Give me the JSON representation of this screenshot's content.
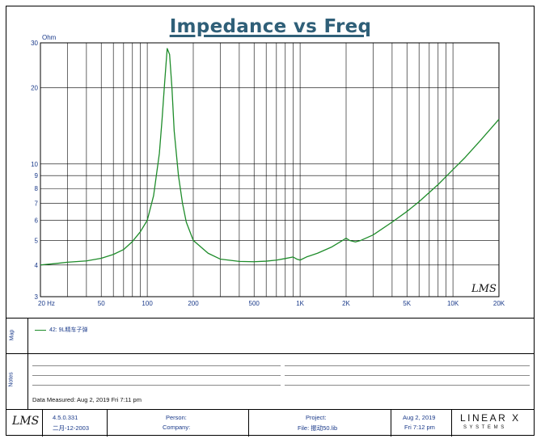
{
  "title": "Impedance vs Freq",
  "chart_data": {
    "type": "line",
    "title": "Impedance vs Freq",
    "ylabel": "Ohm",
    "xlabel": "",
    "x_scale": "log",
    "y_scale": "log",
    "xlim": [
      20,
      20000
    ],
    "ylim": [
      3,
      30
    ],
    "grid": true,
    "x_tick_labels": [
      {
        "value": 20,
        "label": "20 Hz"
      },
      {
        "value": 50,
        "label": "50"
      },
      {
        "value": 100,
        "label": "100"
      },
      {
        "value": 200,
        "label": "200"
      },
      {
        "value": 500,
        "label": "500"
      },
      {
        "value": 1000,
        "label": "1K"
      },
      {
        "value": 2000,
        "label": "2K"
      },
      {
        "value": 5000,
        "label": "5K"
      },
      {
        "value": 10000,
        "label": "10K"
      },
      {
        "value": 20000,
        "label": "20K"
      }
    ],
    "y_tick_labels": [
      {
        "value": 3,
        "label": "3"
      },
      {
        "value": 4,
        "label": "4"
      },
      {
        "value": 5,
        "label": "5"
      },
      {
        "value": 6,
        "label": "6"
      },
      {
        "value": 7,
        "label": "7"
      },
      {
        "value": 8,
        "label": "8"
      },
      {
        "value": 9,
        "label": "9"
      },
      {
        "value": 10,
        "label": "10"
      },
      {
        "value": 20,
        "label": "20"
      },
      {
        "value": 30,
        "label": "30"
      }
    ],
    "series": [
      {
        "name": "42: 9L精车子弹",
        "color": "#1e8c2a",
        "x": [
          20,
          25,
          30,
          40,
          50,
          60,
          70,
          80,
          90,
          100,
          110,
          120,
          125,
          130,
          135,
          140,
          145,
          150,
          160,
          170,
          180,
          200,
          250,
          300,
          400,
          500,
          600,
          700,
          800,
          900,
          950,
          1000,
          1100,
          1300,
          1600,
          1900,
          2000,
          2100,
          2300,
          2500,
          3000,
          4000,
          5000,
          6000,
          8000,
          10000,
          12000,
          15000,
          20000
        ],
        "values": [
          4.0,
          4.05,
          4.1,
          4.15,
          4.25,
          4.4,
          4.6,
          4.95,
          5.4,
          6.0,
          7.5,
          11.0,
          15.0,
          21.0,
          28.5,
          27.0,
          20.0,
          13.5,
          9.0,
          7.0,
          5.9,
          5.0,
          4.45,
          4.22,
          4.13,
          4.12,
          4.14,
          4.18,
          4.24,
          4.3,
          4.22,
          4.18,
          4.3,
          4.45,
          4.7,
          5.0,
          5.1,
          5.0,
          4.93,
          5.0,
          5.25,
          5.9,
          6.5,
          7.1,
          8.3,
          9.5,
          10.6,
          12.3,
          15.0
        ]
      }
    ]
  },
  "watermark": "LMS",
  "map": {
    "tag": "Map",
    "legend_label": "42: 9L精车子弹"
  },
  "notes": {
    "tag": "Notes",
    "data_measured": "Data Measured: Aug  2, 2019  Fri  7:11 pm"
  },
  "footer": {
    "logo": "LMS",
    "version": "4.5.0.331",
    "version_date": "二月-12-2003",
    "person_label": "Person:",
    "company_label": "Company:",
    "project_label": "Project:",
    "file_label": "File: 振动50.lib",
    "date": "Aug  2, 2019",
    "time": "Fri  7:12 pm",
    "brand_main": "LINEAR X",
    "brand_sub": "S Y S T E M S"
  }
}
